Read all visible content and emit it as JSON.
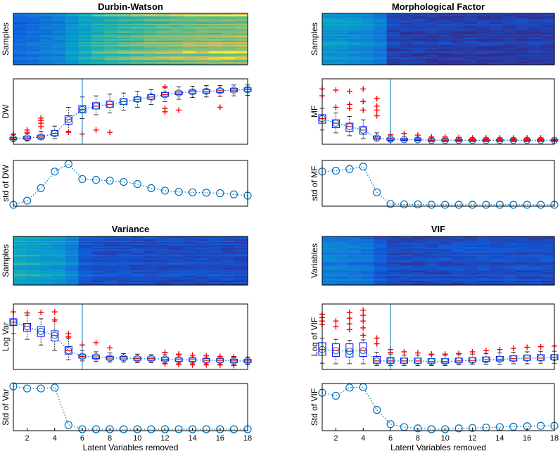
{
  "chart_data": [
    {
      "id": "durbin-watson",
      "title": "Durbin-Watson",
      "type": "heatmap",
      "heatmap": {
        "ylabel": "Samples",
        "profile": [
          0.22,
          0.25,
          0.3,
          0.33,
          0.45,
          0.55,
          0.62,
          0.66,
          0.7,
          0.73,
          0.76,
          0.78,
          0.8,
          0.81,
          0.82,
          0.83,
          0.84,
          0.85
        ]
      },
      "box": {
        "ylabel": "DW",
        "box_color": "#0000ff",
        "median": [
          0.05,
          0.06,
          0.08,
          0.14,
          0.38,
          0.56,
          0.62,
          0.65,
          0.7,
          0.74,
          0.78,
          0.82,
          0.85,
          0.87,
          0.88,
          0.89,
          0.9,
          0.91
        ],
        "q1": [
          0.03,
          0.04,
          0.06,
          0.1,
          0.3,
          0.5,
          0.57,
          0.6,
          0.65,
          0.7,
          0.74,
          0.79,
          0.82,
          0.84,
          0.85,
          0.86,
          0.87,
          0.88
        ],
        "q3": [
          0.07,
          0.09,
          0.11,
          0.19,
          0.45,
          0.63,
          0.68,
          0.71,
          0.75,
          0.78,
          0.82,
          0.86,
          0.88,
          0.9,
          0.91,
          0.92,
          0.93,
          0.94
        ],
        "wlo": [
          0.01,
          0.02,
          0.03,
          0.05,
          0.18,
          0.4,
          0.47,
          0.5,
          0.55,
          0.6,
          0.65,
          0.7,
          0.74,
          0.77,
          0.78,
          0.79,
          0.8,
          0.81
        ],
        "whi": [
          0.12,
          0.14,
          0.18,
          0.27,
          0.6,
          0.78,
          0.8,
          0.83,
          0.85,
          0.88,
          0.91,
          0.94,
          0.96,
          0.97,
          0.98,
          0.98,
          0.99,
          0.99
        ],
        "outliers": [
          [
            1,
            0.13
          ],
          [
            2,
            0.16
          ],
          [
            2,
            0.2
          ],
          [
            3,
            0.26
          ],
          [
            3,
            0.32
          ],
          [
            3,
            0.37
          ],
          [
            3,
            0.41
          ],
          [
            5,
            0.16
          ],
          [
            6,
            0.13
          ],
          [
            7,
            0.2
          ],
          [
            8,
            0.16
          ],
          [
            12,
            0.52
          ],
          [
            12,
            0.58
          ],
          [
            13,
            0.55
          ],
          [
            12,
            0.96
          ],
          [
            16,
            0.6
          ]
        ],
        "vline_x": 6
      },
      "std": {
        "ylabel": "std of DW",
        "values": [
          0.0,
          0.1,
          0.4,
          0.8,
          0.98,
          0.62,
          0.6,
          0.58,
          0.55,
          0.5,
          0.4,
          0.34,
          0.31,
          0.3,
          0.29,
          0.28,
          0.25,
          0.22
        ]
      }
    },
    {
      "id": "morphological-factor",
      "title": "Morphological Factor",
      "type": "heatmap",
      "heatmap": {
        "ylabel": "Samples",
        "profile": [
          0.45,
          0.43,
          0.4,
          0.37,
          0.3,
          0.08,
          0.07,
          0.07,
          0.06,
          0.06,
          0.06,
          0.06,
          0.06,
          0.06,
          0.06,
          0.06,
          0.06,
          0.06
        ]
      },
      "box": {
        "ylabel": "MF",
        "box_color": "#0000ff",
        "median": [
          0.4,
          0.32,
          0.26,
          0.2,
          0.06,
          0.04,
          0.03,
          0.03,
          0.02,
          0.02,
          0.02,
          0.02,
          0.02,
          0.02,
          0.02,
          0.02,
          0.02,
          0.02
        ],
        "q1": [
          0.32,
          0.24,
          0.18,
          0.13,
          0.04,
          0.02,
          0.02,
          0.02,
          0.01,
          0.01,
          0.01,
          0.01,
          0.01,
          0.01,
          0.01,
          0.01,
          0.01,
          0.01
        ],
        "q3": [
          0.47,
          0.38,
          0.32,
          0.26,
          0.09,
          0.06,
          0.05,
          0.05,
          0.04,
          0.04,
          0.03,
          0.03,
          0.03,
          0.03,
          0.03,
          0.03,
          0.03,
          0.03
        ],
        "wlo": [
          0.2,
          0.15,
          0.1,
          0.05,
          0.01,
          0.01,
          0.01,
          0.01,
          0.0,
          0.0,
          0.0,
          0.0,
          0.0,
          0.0,
          0.0,
          0.0,
          0.0,
          0.0
        ],
        "whi": [
          0.58,
          0.5,
          0.44,
          0.38,
          0.15,
          0.1,
          0.08,
          0.07,
          0.06,
          0.05,
          0.05,
          0.05,
          0.05,
          0.05,
          0.05,
          0.05,
          0.05,
          0.05
        ],
        "outliers": [
          [
            1,
            0.8
          ],
          [
            1,
            0.92
          ],
          [
            2,
            0.9
          ],
          [
            3,
            0.88
          ],
          [
            3,
            0.65
          ],
          [
            2,
            0.6
          ],
          [
            3,
            0.58
          ],
          [
            4,
            0.55
          ],
          [
            4,
            0.7
          ],
          [
            4,
            0.92
          ],
          [
            5,
            0.75
          ],
          [
            5,
            0.62
          ],
          [
            5,
            0.55
          ],
          [
            5,
            0.45
          ],
          [
            6,
            0.12
          ],
          [
            7,
            0.14
          ],
          [
            8,
            0.11
          ],
          [
            9,
            0.08
          ],
          [
            10,
            0.08
          ],
          [
            11,
            0.07
          ],
          [
            12,
            0.06
          ],
          [
            13,
            0.06
          ],
          [
            14,
            0.06
          ],
          [
            15,
            0.06
          ],
          [
            16,
            0.06
          ],
          [
            17,
            0.06
          ]
        ],
        "vline_x": 6
      },
      "std": {
        "ylabel": "std of MF",
        "values": [
          0.8,
          0.82,
          0.86,
          0.92,
          0.3,
          0.02,
          0.01,
          0.01,
          0.0,
          0.0,
          0.0,
          0.0,
          0.0,
          0.0,
          0.0,
          0.0,
          0.0,
          0.0
        ]
      }
    },
    {
      "id": "variance",
      "title": "Variance",
      "type": "heatmap",
      "heatmap": {
        "ylabel": "Samples",
        "profile": [
          0.55,
          0.52,
          0.48,
          0.45,
          0.35,
          0.15,
          0.13,
          0.12,
          0.12,
          0.11,
          0.11,
          0.11,
          0.11,
          0.11,
          0.11,
          0.11,
          0.11,
          0.11
        ]
      },
      "box": {
        "ylabel": "Log Var",
        "box_color": "#0000ff",
        "median": [
          0.78,
          0.7,
          0.62,
          0.55,
          0.28,
          0.18,
          0.17,
          0.15,
          0.15,
          0.14,
          0.14,
          0.13,
          0.12,
          0.12,
          0.11,
          0.11,
          0.1,
          0.1
        ],
        "q1": [
          0.72,
          0.62,
          0.53,
          0.45,
          0.22,
          0.15,
          0.14,
          0.12,
          0.12,
          0.11,
          0.11,
          0.1,
          0.09,
          0.09,
          0.08,
          0.08,
          0.07,
          0.07
        ],
        "q3": [
          0.84,
          0.76,
          0.7,
          0.63,
          0.35,
          0.21,
          0.2,
          0.18,
          0.18,
          0.17,
          0.17,
          0.16,
          0.15,
          0.15,
          0.14,
          0.14,
          0.13,
          0.13
        ],
        "wlo": [
          0.58,
          0.48,
          0.38,
          0.28,
          0.12,
          0.1,
          0.09,
          0.08,
          0.08,
          0.07,
          0.07,
          0.06,
          0.05,
          0.05,
          0.04,
          0.04,
          0.03,
          0.03
        ],
        "whi": [
          0.96,
          0.9,
          0.84,
          0.8,
          0.5,
          0.28,
          0.26,
          0.24,
          0.23,
          0.22,
          0.21,
          0.21,
          0.2,
          0.2,
          0.19,
          0.18,
          0.18,
          0.17
        ],
        "outliers": [
          [
            1,
            0.96
          ],
          [
            2,
            0.94
          ],
          [
            3,
            0.95
          ],
          [
            4,
            0.96
          ],
          [
            4,
            0.82
          ],
          [
            5,
            0.58
          ],
          [
            5,
            0.52
          ],
          [
            6,
            0.38
          ],
          [
            7,
            0.42
          ],
          [
            8,
            0.33
          ],
          [
            12,
            0.25
          ],
          [
            13,
            0.22
          ],
          [
            14,
            0.2
          ],
          [
            15,
            0.19
          ],
          [
            16,
            0.18
          ],
          [
            17,
            0.17
          ],
          [
            12,
            0.05
          ],
          [
            13,
            0.04
          ],
          [
            14,
            0.03
          ],
          [
            15,
            0.03
          ],
          [
            16,
            0.03
          ],
          [
            17,
            0.02
          ]
        ],
        "vline_x": 6
      },
      "std": {
        "ylabel": "Std of Var",
        "values": [
          1.0,
          0.95,
          0.95,
          0.97,
          0.1,
          0.0,
          0.0,
          0.0,
          0.0,
          0.0,
          0.0,
          0.0,
          0.0,
          0.0,
          0.0,
          0.0,
          0.0,
          0.0
        ]
      }
    },
    {
      "id": "vif",
      "title": "VIF",
      "type": "heatmap",
      "heatmap": {
        "ylabel": "Variables",
        "profile": [
          0.32,
          0.3,
          0.28,
          0.25,
          0.15,
          0.1,
          0.1,
          0.1,
          0.1,
          0.1,
          0.11,
          0.11,
          0.11,
          0.11,
          0.11,
          0.11,
          0.11,
          0.11
        ]
      },
      "box": {
        "ylabel": "Log of VIF",
        "box_color": "#0000ff",
        "median": [
          0.3,
          0.28,
          0.27,
          0.28,
          0.1,
          0.1,
          0.1,
          0.1,
          0.09,
          0.09,
          0.1,
          0.11,
          0.12,
          0.13,
          0.14,
          0.15,
          0.15,
          0.16
        ],
        "q1": [
          0.2,
          0.18,
          0.17,
          0.18,
          0.06,
          0.06,
          0.06,
          0.06,
          0.06,
          0.06,
          0.07,
          0.08,
          0.09,
          0.1,
          0.1,
          0.11,
          0.11,
          0.12
        ],
        "q3": [
          0.42,
          0.4,
          0.4,
          0.42,
          0.18,
          0.16,
          0.15,
          0.15,
          0.14,
          0.14,
          0.15,
          0.16,
          0.17,
          0.18,
          0.19,
          0.2,
          0.21,
          0.21
        ],
        "wlo": [
          0.06,
          0.05,
          0.05,
          0.05,
          0.02,
          0.02,
          0.02,
          0.02,
          0.02,
          0.02,
          0.03,
          0.03,
          0.04,
          0.04,
          0.05,
          0.05,
          0.06,
          0.06
        ],
        "whi": [
          0.5,
          0.48,
          0.46,
          0.47,
          0.25,
          0.22,
          0.2,
          0.2,
          0.2,
          0.2,
          0.21,
          0.22,
          0.23,
          0.24,
          0.25,
          0.26,
          0.27,
          0.27
        ],
        "outliers": [
          [
            1,
            0.92
          ],
          [
            1,
            0.86
          ],
          [
            1,
            0.8
          ],
          [
            1,
            0.74
          ],
          [
            2,
            0.8
          ],
          [
            2,
            0.7
          ],
          [
            3,
            0.95
          ],
          [
            3,
            0.85
          ],
          [
            3,
            0.75
          ],
          [
            3,
            0.65
          ],
          [
            4,
            0.99
          ],
          [
            4,
            0.9
          ],
          [
            4,
            0.8
          ],
          [
            4,
            0.68
          ],
          [
            4,
            0.55
          ],
          [
            5,
            0.5
          ],
          [
            5,
            0.4
          ],
          [
            6,
            0.25
          ],
          [
            6,
            0.3
          ],
          [
            7,
            0.26
          ],
          [
            8,
            0.24
          ],
          [
            9,
            0.22
          ],
          [
            10,
            0.22
          ],
          [
            11,
            0.23
          ],
          [
            12,
            0.26
          ],
          [
            13,
            0.28
          ],
          [
            14,
            0.3
          ],
          [
            15,
            0.32
          ],
          [
            16,
            0.34
          ],
          [
            17,
            0.35
          ],
          [
            18,
            0.36
          ]
        ],
        "vline_x": 6
      },
      "std": {
        "ylabel": "Std of VIF",
        "values": [
          0.85,
          0.78,
          0.97,
          0.98,
          0.45,
          0.12,
          0.05,
          0.02,
          0.0,
          0.0,
          0.02,
          0.03,
          0.04,
          0.05,
          0.06,
          0.07,
          0.08,
          0.08
        ]
      }
    }
  ],
  "x_axis": {
    "label": "Latent Variables removed",
    "tick_labels": [
      "2",
      "4",
      "6",
      "8",
      "10",
      "12",
      "14",
      "16",
      "18"
    ],
    "tick_values": [
      2,
      4,
      6,
      8,
      10,
      12,
      14,
      16,
      18
    ],
    "xlim": [
      1,
      18
    ]
  },
  "colors": {
    "box": "#0000ff",
    "median": "#ff0000",
    "outlier": "#ff0000",
    "whisker": "#000000",
    "trend": "#0072bd",
    "marker": "#0072bd",
    "vline": "#0072bd"
  }
}
